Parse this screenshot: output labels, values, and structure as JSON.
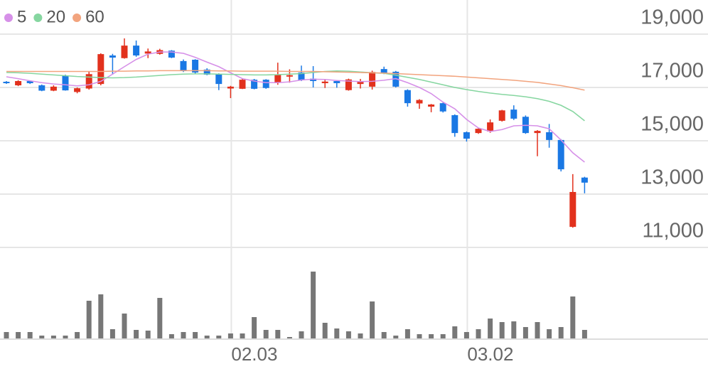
{
  "chart_data": {
    "type": "candlestick",
    "categories": [
      null,
      null,
      null,
      null,
      null,
      null,
      null,
      null,
      null,
      null,
      null,
      null,
      null,
      null,
      null,
      null,
      null,
      null,
      null,
      "02.03",
      null,
      null,
      null,
      null,
      null,
      null,
      null,
      null,
      null,
      null,
      null,
      null,
      null,
      null,
      null,
      null,
      null,
      null,
      null,
      "03.02",
      null,
      null,
      null,
      null,
      null,
      null,
      null,
      null,
      null,
      null
    ],
    "open": [
      17213,
      17080,
      17240,
      17080,
      16880,
      17450,
      16830,
      16960,
      17130,
      18200,
      18100,
      18570,
      18270,
      18260,
      18380,
      17990,
      18040,
      17670,
      17500,
      16960,
      16950,
      17290,
      17290,
      17190,
      17430,
      17560,
      17330,
      17160,
      17240,
      16900,
      17130,
      17030,
      17690,
      17590,
      16900,
      16400,
      16280,
      16410,
      15960,
      15320,
      15290,
      15350,
      15750,
      16170,
      15900,
      15290,
      15320,
      15030,
      11770,
      13620
    ],
    "high": [
      17240,
      17270,
      17260,
      17110,
      17080,
      17480,
      17000,
      17600,
      18280,
      18260,
      18840,
      18760,
      18460,
      18450,
      18400,
      18050,
      18060,
      17720,
      17530,
      17060,
      17320,
      17320,
      17310,
      17930,
      17680,
      17820,
      17800,
      17300,
      17280,
      17330,
      17320,
      17630,
      17780,
      17620,
      16930,
      16560,
      16380,
      16430,
      15990,
      15350,
      15480,
      15800,
      16160,
      16330,
      15950,
      15400,
      15630,
      15060,
      13750,
      13650
    ],
    "low": [
      17133,
      17050,
      17130,
      16860,
      16860,
      16880,
      16780,
      16920,
      17080,
      17480,
      18080,
      18150,
      18100,
      18230,
      18100,
      17580,
      17500,
      17460,
      16900,
      16600,
      16940,
      16930,
      16950,
      17100,
      17180,
      17240,
      17000,
      16980,
      16990,
      16880,
      16960,
      16920,
      17500,
      17000,
      16280,
      16200,
      16070,
      16060,
      15150,
      14970,
      15260,
      15300,
      15720,
      15780,
      15260,
      14420,
      14740,
      13850,
      11740,
      13030
    ],
    "close": [
      17160,
      17240,
      17160,
      16880,
      17030,
      16890,
      16970,
      17500,
      18250,
      18120,
      18570,
      18200,
      18350,
      18400,
      18120,
      17620,
      17560,
      17480,
      17130,
      17030,
      17290,
      16950,
      16980,
      17480,
      17460,
      17270,
      17240,
      17220,
      17160,
      17300,
      17210,
      17580,
      17530,
      17030,
      16410,
      16530,
      16360,
      16100,
      15290,
      15080,
      15450,
      15690,
      16140,
      15830,
      15290,
      15370,
      15030,
      13930,
      13080,
      13430
    ],
    "up_color": "#e2311d",
    "down_color": "#1a78e4",
    "moving_averages": [
      {
        "name": "5",
        "color": "#d690e8",
        "values": [
          17400,
          17330,
          17250,
          17180,
          17130,
          17100,
          17060,
          17100,
          17230,
          17500,
          17780,
          18050,
          18250,
          18330,
          18330,
          18280,
          18130,
          17950,
          17780,
          17550,
          17330,
          17240,
          17180,
          17180,
          17210,
          17280,
          17310,
          17300,
          17260,
          17240,
          17220,
          17230,
          17270,
          17330,
          17180,
          17000,
          16770,
          16450,
          16200,
          15800,
          15480,
          15350,
          15420,
          15560,
          15580,
          15560,
          15450,
          15030,
          14550,
          14200
        ]
      },
      {
        "name": "20",
        "color": "#86d6a0",
        "values": [
          17560,
          17550,
          17530,
          17500,
          17470,
          17440,
          17410,
          17390,
          17370,
          17360,
          17370,
          17390,
          17420,
          17450,
          17480,
          17500,
          17510,
          17510,
          17500,
          17490,
          17480,
          17470,
          17470,
          17480,
          17500,
          17520,
          17560,
          17600,
          17620,
          17610,
          17580,
          17550,
          17530,
          17460,
          17380,
          17300,
          17200,
          17100,
          17000,
          16920,
          16850,
          16790,
          16740,
          16700,
          16650,
          16580,
          16480,
          16330,
          16100,
          15750
        ]
      },
      {
        "name": "60",
        "color": "#f2a47e",
        "values": [
          17600,
          17600,
          17600,
          17600,
          17600,
          17600,
          17600,
          17600,
          17600,
          17610,
          17610,
          17620,
          17620,
          17630,
          17630,
          17630,
          17630,
          17630,
          17620,
          17620,
          17610,
          17610,
          17610,
          17610,
          17600,
          17600,
          17600,
          17590,
          17580,
          17570,
          17560,
          17550,
          17540,
          17520,
          17500,
          17480,
          17460,
          17440,
          17420,
          17390,
          17360,
          17330,
          17300,
          17270,
          17230,
          17190,
          17130,
          17070,
          16990,
          16900
        ]
      }
    ],
    "volume": {
      "color": "#777777",
      "values": [
        9,
        9,
        9,
        4,
        4,
        4,
        9,
        53,
        62,
        13,
        35,
        12,
        11,
        57,
        6,
        9,
        9,
        4,
        4,
        7,
        7,
        30,
        12,
        12,
        2,
        10,
        94,
        22,
        14,
        10,
        7,
        52,
        9,
        4,
        13,
        6,
        6,
        6,
        17,
        9,
        13,
        28,
        23,
        24,
        16,
        23,
        13,
        16,
        59,
        12
      ]
    },
    "volume_lim": [
      0,
      100
    ],
    "ylim": [
      11000,
      20280
    ],
    "yticks": [
      {
        "value": 11000,
        "label": "11,000"
      },
      {
        "value": 13000,
        "label": "13,000"
      },
      {
        "value": 15000,
        "label": "15,000"
      },
      {
        "value": 17000,
        "label": "17,000"
      },
      {
        "value": 19000,
        "label": "19,000"
      }
    ],
    "grid": true
  }
}
